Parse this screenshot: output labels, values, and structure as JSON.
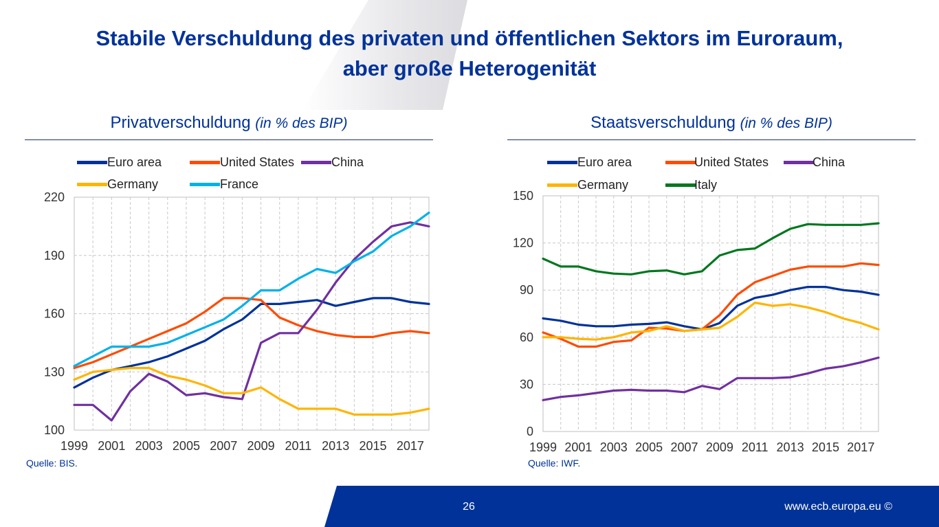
{
  "slide": {
    "title_line1": "Stabile Verschuldung des privaten und öffentlichen Sektors im Euroraum,",
    "title_line2": "aber große Heterogenität",
    "page_number": "26",
    "website": "www.ecb.europa.eu ©"
  },
  "panels": [
    {
      "title": "Privatverschuldung",
      "unit": "(in % des BIP)",
      "source": "Quelle: BIS."
    },
    {
      "title": "Staatsverschuldung",
      "unit": "(in % des BIP)",
      "source": "Quelle: IWF."
    }
  ],
  "chart_data": [
    {
      "type": "line",
      "title": "Privatverschuldung (in % des BIP)",
      "xlabel": "",
      "ylabel": "",
      "grid": true,
      "legend_position": "top",
      "x": [
        1999,
        2000,
        2001,
        2002,
        2003,
        2004,
        2005,
        2006,
        2007,
        2008,
        2009,
        2010,
        2011,
        2012,
        2013,
        2014,
        2015,
        2016,
        2017,
        2018
      ],
      "x_tick_labels": [
        "1999",
        "2001",
        "2003",
        "2005",
        "2007",
        "2009",
        "2011",
        "2013",
        "2015",
        "2017"
      ],
      "x_ticks": [
        1999,
        2001,
        2003,
        2005,
        2007,
        2009,
        2011,
        2013,
        2015,
        2017
      ],
      "y_ticks": [
        100,
        130,
        160,
        190,
        220
      ],
      "ylim": [
        100,
        220
      ],
      "xlim": [
        1999,
        2018
      ],
      "series": [
        {
          "name": "Euro area",
          "color": "#003299",
          "values": [
            122,
            127,
            131,
            133,
            135,
            138,
            142,
            146,
            152,
            157,
            165,
            165,
            166,
            167,
            164,
            166,
            168,
            168,
            166,
            165
          ]
        },
        {
          "name": "United States",
          "color": "#ff4b00",
          "values": [
            132,
            135,
            139,
            143,
            147,
            151,
            155,
            161,
            168,
            168,
            167,
            158,
            154,
            151,
            149,
            148,
            148,
            150,
            151,
            150
          ]
        },
        {
          "name": "China",
          "color": "#7030a0",
          "values": [
            113,
            113,
            105,
            120,
            129,
            125,
            118,
            119,
            117,
            116,
            145,
            150,
            150,
            162,
            176,
            188,
            197,
            205,
            207,
            205
          ]
        },
        {
          "name": "Germany",
          "color": "#ffb400",
          "values": [
            126,
            130,
            131,
            132,
            132,
            128,
            126,
            123,
            119,
            119,
            122,
            116,
            111,
            111,
            111,
            108,
            108,
            108,
            109,
            111
          ]
        },
        {
          "name": "France",
          "color": "#00b1ea",
          "values": [
            133,
            138,
            143,
            143,
            143,
            145,
            149,
            153,
            157,
            164,
            172,
            172,
            178,
            183,
            181,
            187,
            192,
            200,
            205,
            212
          ]
        }
      ]
    },
    {
      "type": "line",
      "title": "Staatsverschuldung (in % des BIP)",
      "xlabel": "",
      "ylabel": "",
      "grid": true,
      "legend_position": "top",
      "x": [
        1999,
        2000,
        2001,
        2002,
        2003,
        2004,
        2005,
        2006,
        2007,
        2008,
        2009,
        2010,
        2011,
        2012,
        2013,
        2014,
        2015,
        2016,
        2017,
        2018
      ],
      "x_tick_labels": [
        "1999",
        "2001",
        "2003",
        "2005",
        "2007",
        "2009",
        "2011",
        "2013",
        "2015",
        "2017"
      ],
      "x_ticks": [
        1999,
        2001,
        2003,
        2005,
        2007,
        2009,
        2011,
        2013,
        2015,
        2017
      ],
      "y_ticks": [
        0,
        30,
        60,
        90,
        120,
        150
      ],
      "ylim": [
        0,
        150
      ],
      "xlim": [
        1999,
        2018
      ],
      "series": [
        {
          "name": "Euro area",
          "color": "#003299",
          "values": [
            72,
            70.5,
            68,
            67,
            67,
            68,
            68.5,
            69.5,
            67,
            65,
            69,
            80,
            85,
            87,
            90,
            92,
            92,
            90,
            89,
            87
          ]
        },
        {
          "name": "United States",
          "color": "#ff4b00",
          "values": [
            63,
            59,
            54,
            54,
            57,
            58,
            66,
            65.5,
            64,
            65,
            74,
            87,
            95,
            99,
            103,
            105,
            105,
            105,
            107,
            106
          ]
        },
        {
          "name": "China",
          "color": "#7030a0",
          "values": [
            20,
            22,
            23,
            24.5,
            26,
            26.5,
            26,
            26,
            25,
            29,
            27,
            34,
            34,
            34,
            34.5,
            37,
            40,
            41.5,
            44,
            47
          ]
        },
        {
          "name": "Germany",
          "color": "#ffb400",
          "values": [
            60,
            60,
            59,
            58.5,
            60,
            63,
            64,
            67,
            64,
            65,
            66,
            73,
            82,
            80,
            81,
            79,
            76,
            72,
            69,
            65
          ]
        },
        {
          "name": "Italy",
          "color": "#00771e",
          "values": [
            110,
            105,
            105,
            102,
            100.5,
            100,
            102,
            102.5,
            100,
            102,
            112,
            115.5,
            116.5,
            123,
            129,
            132,
            131.5,
            131.5,
            131.5,
            132.5
          ]
        }
      ]
    }
  ]
}
